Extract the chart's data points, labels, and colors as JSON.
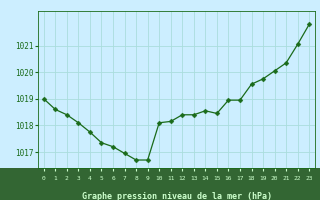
{
  "x": [
    0,
    1,
    2,
    3,
    4,
    5,
    6,
    7,
    8,
    9,
    10,
    11,
    12,
    13,
    14,
    15,
    16,
    17,
    18,
    19,
    20,
    21,
    22,
    23
  ],
  "y": [
    1019.0,
    1018.6,
    1018.4,
    1018.1,
    1017.75,
    1017.35,
    1017.2,
    1016.95,
    1016.7,
    1016.7,
    1018.1,
    1018.15,
    1018.4,
    1018.4,
    1018.55,
    1018.45,
    1018.95,
    1018.95,
    1019.55,
    1019.75,
    1020.05,
    1020.35,
    1021.05,
    1021.8
  ],
  "line_color": "#1a6b1a",
  "marker": "D",
  "marker_size": 2.5,
  "bg_color": "#cceeff",
  "bottom_bar_color": "#336633",
  "grid_color": "#aadddd",
  "xlabel": "Graphe pression niveau de la mer (hPa)",
  "xlabel_color": "#ccffcc",
  "tick_label_color": "#1a6b1a",
  "bottom_tick_color": "#ccffcc",
  "axis_color": "#1a6b1a",
  "ylim": [
    1016.4,
    1022.3
  ],
  "yticks": [
    1017,
    1018,
    1019,
    1020,
    1021
  ],
  "xlim": [
    -0.5,
    23.5
  ],
  "xticks": [
    0,
    1,
    2,
    3,
    4,
    5,
    6,
    7,
    8,
    9,
    10,
    11,
    12,
    13,
    14,
    15,
    16,
    17,
    18,
    19,
    20,
    21,
    22,
    23
  ]
}
